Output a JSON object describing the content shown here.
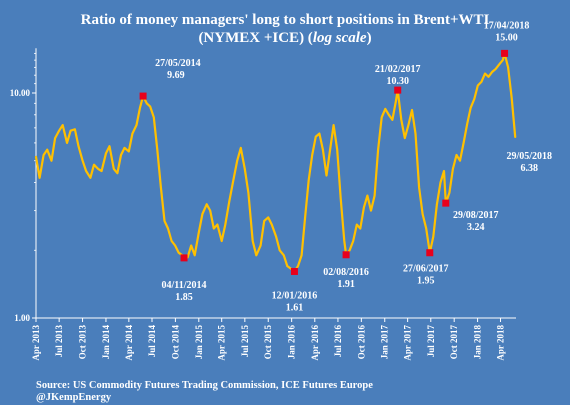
{
  "chart_data": {
    "type": "line",
    "title_line1": "Ratio of money managers' long to short positions in  Brent+WTI",
    "title_line2_prefix": "(NYMEX +ICE) (",
    "title_line2_italic": "log scale",
    "title_line2_suffix": ")",
    "y_scale": "log",
    "ylim": [
      1,
      15.8
    ],
    "y_ticks": [
      {
        "value": 1,
        "label": "1.00"
      },
      {
        "value": 10,
        "label": "10.00"
      }
    ],
    "grid": false,
    "x_ticks": [
      "Apr 2013",
      "Jul 2013",
      "Oct 2013",
      "Jan 2014",
      "Apr 2014",
      "Jul 2014",
      "Oct 2014",
      "Jan 2015",
      "Apr 2015",
      "Jul 2015",
      "Oct 2015",
      "Jan 2016",
      "Apr 2016",
      "Jul 2016",
      "Oct 2016",
      "Jan 2017",
      "Apr 2017",
      "Jul 2017",
      "Oct 2017",
      "Jan 2018",
      "Apr 2018"
    ],
    "series": [
      {
        "color": "#ffc000",
        "x": [
          "2013-04-01",
          "2013-04-15",
          "2013-05-01",
          "2013-05-15",
          "2013-06-01",
          "2013-06-15",
          "2013-07-01",
          "2013-07-15",
          "2013-08-01",
          "2013-08-15",
          "2013-09-01",
          "2013-09-15",
          "2013-10-01",
          "2013-10-15",
          "2013-11-01",
          "2013-11-15",
          "2013-12-01",
          "2013-12-15",
          "2014-01-01",
          "2014-01-15",
          "2014-02-01",
          "2014-02-15",
          "2014-03-01",
          "2014-03-15",
          "2014-04-01",
          "2014-04-15",
          "2014-05-01",
          "2014-05-15",
          "2014-05-27",
          "2014-06-10",
          "2014-06-24",
          "2014-07-08",
          "2014-07-22",
          "2014-08-05",
          "2014-08-19",
          "2014-09-02",
          "2014-09-16",
          "2014-09-30",
          "2014-10-14",
          "2014-10-28",
          "2014-11-04",
          "2014-11-18",
          "2014-12-02",
          "2014-12-16",
          "2015-01-01",
          "2015-01-15",
          "2015-02-01",
          "2015-02-15",
          "2015-03-01",
          "2015-03-15",
          "2015-04-01",
          "2015-04-15",
          "2015-05-01",
          "2015-05-15",
          "2015-06-01",
          "2015-06-15",
          "2015-07-01",
          "2015-07-15",
          "2015-08-01",
          "2015-08-15",
          "2015-09-01",
          "2015-09-15",
          "2015-10-01",
          "2015-10-15",
          "2015-11-01",
          "2015-11-15",
          "2015-12-01",
          "2015-12-15",
          "2016-01-01",
          "2016-01-12",
          "2016-01-26",
          "2016-02-09",
          "2016-02-23",
          "2016-03-08",
          "2016-03-22",
          "2016-04-05",
          "2016-04-19",
          "2016-05-03",
          "2016-05-17",
          "2016-05-31",
          "2016-06-14",
          "2016-06-28",
          "2016-07-12",
          "2016-07-26",
          "2016-08-02",
          "2016-08-16",
          "2016-08-30",
          "2016-09-13",
          "2016-09-27",
          "2016-10-11",
          "2016-10-25",
          "2016-11-08",
          "2016-11-22",
          "2016-12-06",
          "2016-12-20",
          "2017-01-03",
          "2017-01-17",
          "2017-01-31",
          "2017-02-14",
          "2017-02-21",
          "2017-03-07",
          "2017-03-21",
          "2017-04-04",
          "2017-04-18",
          "2017-05-02",
          "2017-05-16",
          "2017-05-30",
          "2017-06-13",
          "2017-06-27",
          "2017-07-11",
          "2017-07-25",
          "2017-08-08",
          "2017-08-22",
          "2017-08-29",
          "2017-09-12",
          "2017-09-26",
          "2017-10-10",
          "2017-10-24",
          "2017-11-07",
          "2017-11-21",
          "2017-12-05",
          "2017-12-19",
          "2018-01-02",
          "2018-01-16",
          "2018-01-30",
          "2018-02-13",
          "2018-02-27",
          "2018-03-13",
          "2018-03-27",
          "2018-04-10",
          "2018-04-17",
          "2018-05-01",
          "2018-05-15",
          "2018-05-29"
        ],
        "y": [
          5.2,
          4.2,
          5.3,
          5.6,
          5.0,
          6.3,
          6.8,
          7.2,
          6.0,
          6.8,
          6.9,
          5.8,
          5.0,
          4.5,
          4.2,
          4.8,
          4.6,
          4.5,
          5.4,
          5.8,
          4.6,
          4.4,
          5.3,
          5.7,
          5.5,
          6.6,
          7.2,
          8.6,
          9.69,
          9.0,
          8.7,
          7.8,
          5.6,
          3.8,
          2.7,
          2.5,
          2.2,
          2.1,
          1.95,
          1.9,
          1.85,
          1.86,
          2.1,
          1.9,
          2.4,
          2.9,
          3.2,
          3.0,
          2.5,
          2.6,
          2.2,
          2.6,
          3.3,
          4.0,
          5.0,
          5.7,
          4.6,
          3.6,
          2.2,
          1.9,
          2.1,
          2.7,
          2.8,
          2.6,
          2.3,
          2.0,
          1.9,
          1.7,
          1.65,
          1.61,
          1.7,
          1.9,
          2.8,
          4.1,
          5.3,
          6.4,
          6.6,
          5.6,
          4.3,
          5.6,
          7.2,
          5.6,
          3.4,
          2.2,
          1.91,
          2.0,
          2.2,
          2.6,
          2.5,
          3.1,
          3.5,
          3.0,
          3.5,
          5.6,
          7.8,
          8.5,
          8.0,
          7.6,
          9.2,
          10.3,
          7.6,
          6.3,
          7.2,
          8.4,
          6.6,
          3.8,
          2.9,
          2.5,
          1.95,
          2.3,
          3.2,
          4.0,
          4.5,
          3.24,
          3.6,
          4.6,
          5.3,
          5.0,
          6.0,
          7.3,
          8.6,
          9.4,
          10.8,
          11.2,
          12.2,
          11.8,
          12.4,
          12.8,
          13.4,
          14.0,
          15.0,
          13.0,
          9.5,
          6.38
        ]
      }
    ],
    "annotations": [
      {
        "x": "2014-05-27",
        "y": 9.69,
        "date": "27/05/2014",
        "value": "9.69"
      },
      {
        "x": "2014-11-04",
        "y": 1.85,
        "date": "04/11/2014",
        "value": "1.85"
      },
      {
        "x": "2016-01-12",
        "y": 1.61,
        "date": "12/01/2016",
        "value": "1.61"
      },
      {
        "x": "2016-08-02",
        "y": 1.91,
        "date": "02/08/2016",
        "value": "1.91"
      },
      {
        "x": "2017-02-21",
        "y": 10.3,
        "date": "21/02/2017",
        "value": "10.30"
      },
      {
        "x": "2017-06-27",
        "y": 1.95,
        "date": "27/06/2017",
        "value": "1.95"
      },
      {
        "x": "2017-08-29",
        "y": 3.24,
        "date": "29/08/2017",
        "value": "3.24"
      },
      {
        "x": "2018-04-17",
        "y": 15.0,
        "date": "17/04/2018",
        "value": "15.00"
      },
      {
        "x": "2018-05-29",
        "y": 6.38,
        "date": "29/05/2018",
        "value": "6.38"
      }
    ],
    "marker_color": "#e8001c"
  },
  "source": {
    "line1": "Source: US Commodity Futures Trading Commission, ICE Futures Europe",
    "line2": "@JKempEnergy"
  }
}
